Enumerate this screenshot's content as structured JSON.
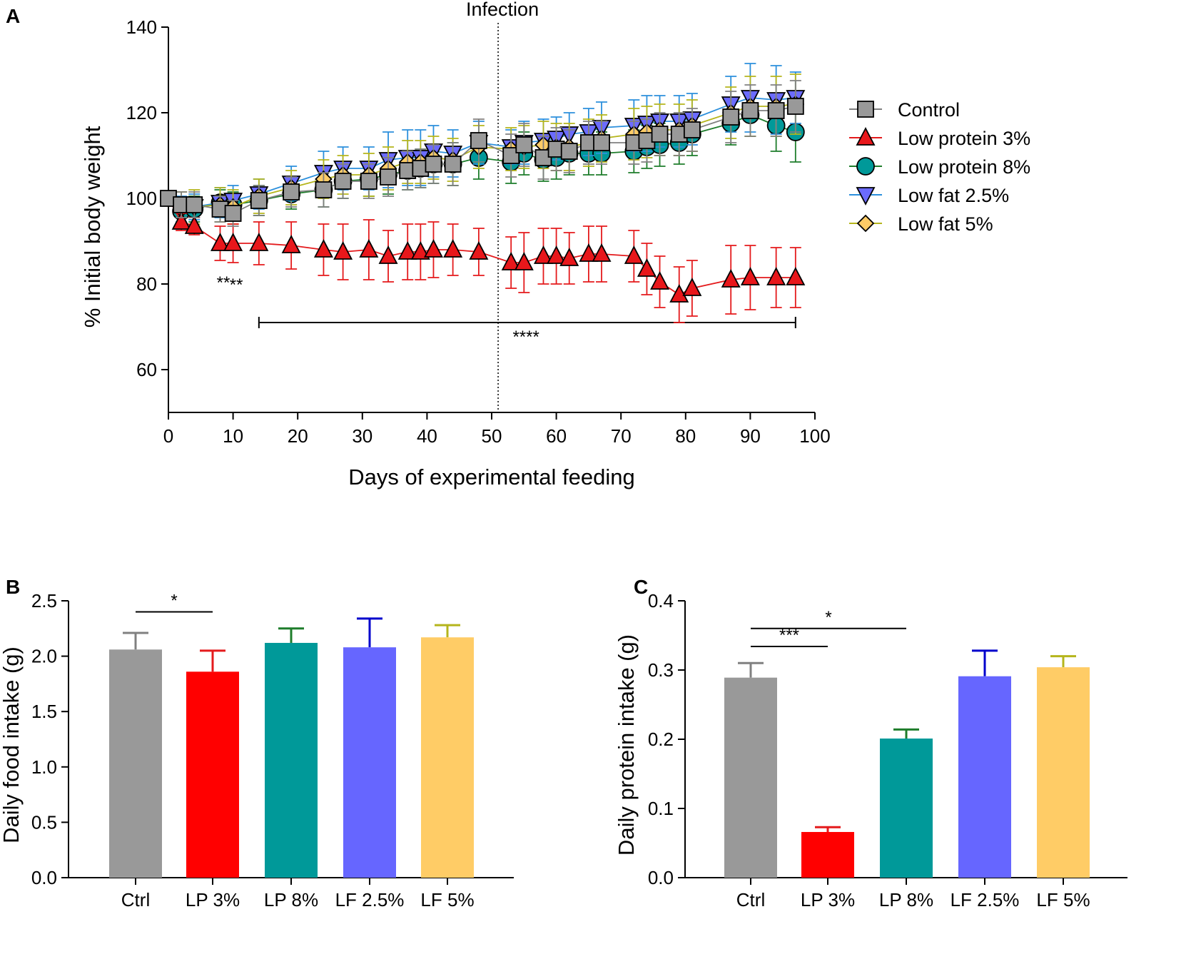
{
  "chart_data": [
    {
      "panel": "A",
      "type": "line",
      "xlabel": "Days of experimental feeding",
      "ylabel": "% Initial body weight",
      "xlim": [
        0,
        100
      ],
      "ylim": [
        50,
        140
      ],
      "xticks": [
        0,
        10,
        20,
        30,
        40,
        50,
        60,
        70,
        80,
        90,
        100
      ],
      "yticks": [
        60,
        80,
        100,
        120,
        140
      ],
      "vline": {
        "x": 51,
        "label": "Infection"
      },
      "significance_bar": {
        "x_start": 14,
        "x_end": 97,
        "y": 71,
        "label": "****"
      },
      "extra_annotations": [
        {
          "x": 8.5,
          "y": 80,
          "label": "**"
        },
        {
          "x": 10.5,
          "y": 79.5,
          "label": "**"
        }
      ],
      "series": [
        {
          "name": "Control",
          "marker": "square",
          "color": "#808080",
          "fill": "#999999",
          "x": [
            0,
            2,
            4,
            8,
            10,
            14,
            19,
            24,
            27,
            31,
            34,
            37,
            39,
            41,
            44,
            48,
            53,
            55,
            58,
            60,
            62,
            65,
            67,
            72,
            74,
            76,
            79,
            81,
            87,
            90,
            94,
            97
          ],
          "y": [
            100,
            98.5,
            98.5,
            97.5,
            96.5,
            99.5,
            101.5,
            102,
            104,
            104,
            105,
            106.5,
            107,
            108,
            108,
            113.5,
            110,
            112.5,
            109.5,
            111.5,
            111,
            113,
            113,
            113,
            113.5,
            115,
            115,
            116,
            119,
            120.5,
            120.5,
            121.5
          ],
          "err": [
            1,
            3,
            3,
            3,
            3,
            3.5,
            3.5,
            4,
            4,
            4,
            4.5,
            4.5,
            4.5,
            4.5,
            5,
            5,
            5,
            5,
            5,
            5,
            5,
            5,
            5,
            5,
            5,
            5,
            5,
            5,
            6,
            6,
            6,
            6
          ]
        },
        {
          "name": "Low protein 3%",
          "marker": "triangle-up",
          "color": "#e41a1c",
          "fill": "#e8171b",
          "x": [
            2,
            4,
            8,
            10,
            14,
            19,
            24,
            27,
            31,
            34,
            37,
            39,
            41,
            44,
            48,
            53,
            55,
            58,
            60,
            62,
            65,
            67,
            72,
            74,
            76,
            79,
            81,
            87,
            90,
            94,
            97
          ],
          "y": [
            94.5,
            93.5,
            89.5,
            89.5,
            89.5,
            89,
            88,
            87.5,
            88,
            86.5,
            87.5,
            87.5,
            88,
            88,
            87.5,
            85,
            85,
            86.5,
            86.5,
            86,
            87,
            87,
            86.5,
            83.5,
            80.5,
            77.5,
            79,
            81,
            81.5,
            81.5,
            81.5
          ],
          "err": [
            2,
            2,
            4,
            4.5,
            5,
            5.5,
            6,
            6.5,
            7,
            6,
            6.5,
            6.5,
            6.5,
            6,
            5.5,
            6,
            7,
            6.5,
            6.5,
            6,
            6.5,
            6.5,
            6,
            6,
            6,
            6.5,
            6.5,
            8,
            7.5,
            7,
            7
          ]
        },
        {
          "name": "Low protein 8%",
          "marker": "circle",
          "color": "#1e7d2b",
          "fill": "#009999",
          "x": [
            2,
            4,
            8,
            10,
            14,
            19,
            24,
            27,
            31,
            34,
            37,
            39,
            41,
            44,
            48,
            53,
            55,
            58,
            60,
            62,
            65,
            67,
            72,
            74,
            76,
            79,
            81,
            87,
            90,
            94,
            97
          ],
          "y": [
            97,
            97.5,
            99,
            98.5,
            99.5,
            101,
            102,
            104,
            104.5,
            105.5,
            106.5,
            107,
            108,
            108,
            109.5,
            108.5,
            110.5,
            109,
            109.5,
            110.5,
            110.5,
            110.5,
            111,
            112,
            112.5,
            113,
            115,
            117.5,
            119.5,
            117,
            115.5
          ],
          "err": [
            3,
            3,
            3,
            3,
            3.5,
            3.5,
            4,
            4,
            4,
            4.5,
            4.5,
            4.5,
            4.5,
            5,
            5,
            5,
            5,
            5,
            5,
            5,
            5,
            5,
            5,
            5,
            5,
            5,
            5,
            5,
            5,
            6,
            7
          ]
        },
        {
          "name": "Low fat 2.5%",
          "marker": "triangle-down",
          "color": "#2b8fdc",
          "fill": "#6b6bff",
          "x": [
            2,
            4,
            8,
            10,
            14,
            19,
            24,
            27,
            31,
            34,
            37,
            39,
            41,
            44,
            48,
            53,
            55,
            58,
            60,
            62,
            65,
            67,
            72,
            74,
            76,
            79,
            81,
            87,
            90,
            94,
            97
          ],
          "y": [
            97.5,
            98,
            99,
            99.5,
            101,
            103.5,
            106,
            107,
            107,
            109,
            109.5,
            109.5,
            111,
            110.5,
            113,
            112,
            113,
            113.5,
            114,
            115,
            115.5,
            116.5,
            117,
            117.5,
            118,
            118,
            118.5,
            122,
            123.5,
            123,
            123.5
          ],
          "err": [
            3,
            3,
            3.5,
            3.5,
            3.5,
            4,
            5,
            5,
            5,
            6.5,
            6.5,
            6.5,
            6,
            5.5,
            5,
            4,
            5,
            5,
            5,
            5,
            5.5,
            6,
            6,
            6.5,
            6,
            6,
            6,
            6.5,
            8,
            8,
            6
          ]
        },
        {
          "name": "Low fat 5%",
          "marker": "diamond",
          "color": "#b5b51c",
          "fill": "#ffcc66",
          "x": [
            2,
            4,
            8,
            10,
            14,
            19,
            24,
            27,
            31,
            34,
            37,
            39,
            41,
            44,
            48,
            53,
            55,
            58,
            60,
            62,
            65,
            67,
            72,
            74,
            76,
            79,
            81,
            87,
            90,
            94,
            97
          ],
          "y": [
            97.5,
            98,
            98.5,
            98,
            100.5,
            102.5,
            104.5,
            105.5,
            105.5,
            107,
            108.5,
            108.5,
            109.5,
            109,
            112,
            111.5,
            112,
            112.5,
            112,
            112,
            113,
            114,
            115,
            115.5,
            116,
            116,
            117,
            120,
            121.5,
            121.5,
            122
          ],
          "err": [
            4,
            4,
            4,
            4,
            4,
            4,
            4.5,
            4.5,
            5,
            5,
            5,
            5,
            5,
            5,
            5,
            5,
            5,
            5.5,
            5.5,
            5.5,
            5.5,
            5.5,
            6,
            6,
            6,
            6,
            6,
            6,
            7,
            7,
            7
          ]
        }
      ],
      "legend": [
        "Control",
        "Low protein 3%",
        "Low protein 8%",
        "Low fat 2.5%",
        "Low fat 5%"
      ]
    },
    {
      "panel": "B",
      "type": "bar",
      "ylabel": "Daily food intake (g)",
      "ylim": [
        0,
        2.5
      ],
      "yticks": [
        "0.0",
        "0.5",
        "1.0",
        "1.5",
        "2.0",
        "2.5"
      ],
      "categories": [
        "Ctrl",
        "LP 3%",
        "LP 8%",
        "LF 2.5%",
        "LF 5%"
      ],
      "values": [
        2.06,
        1.86,
        2.12,
        2.08,
        2.17
      ],
      "errors": [
        0.15,
        0.19,
        0.13,
        0.26,
        0.11
      ],
      "colors": [
        "#999999",
        "#ff0000",
        "#009999",
        "#6666ff",
        "#ffcc66"
      ],
      "error_colors": [
        "#808080",
        "#e41a1c",
        "#1e7d2b",
        "#0000cc",
        "#b5b51c"
      ],
      "significance": [
        {
          "from": 0,
          "to": 1,
          "y": 2.4,
          "label": "*"
        }
      ]
    },
    {
      "panel": "C",
      "type": "bar",
      "ylabel": "Daily protein intake (g)",
      "ylim": [
        0,
        0.4
      ],
      "yticks": [
        "0.0",
        "0.1",
        "0.2",
        "0.3",
        "0.4"
      ],
      "categories": [
        "Ctrl",
        "LP 3%",
        "LP 8%",
        "LF 2.5%",
        "LF 5%"
      ],
      "values": [
        0.289,
        0.066,
        0.201,
        0.291,
        0.304
      ],
      "errors": [
        0.021,
        0.007,
        0.013,
        0.037,
        0.016
      ],
      "colors": [
        "#999999",
        "#ff0000",
        "#009999",
        "#6666ff",
        "#ffcc66"
      ],
      "error_colors": [
        "#808080",
        "#e41a1c",
        "#1e7d2b",
        "#0000cc",
        "#b5b51c"
      ],
      "significance": [
        {
          "from": 0,
          "to": 1,
          "y": 0.334,
          "label": "***"
        },
        {
          "from": 0,
          "to": 2,
          "y": 0.36,
          "label": "*"
        }
      ]
    }
  ]
}
